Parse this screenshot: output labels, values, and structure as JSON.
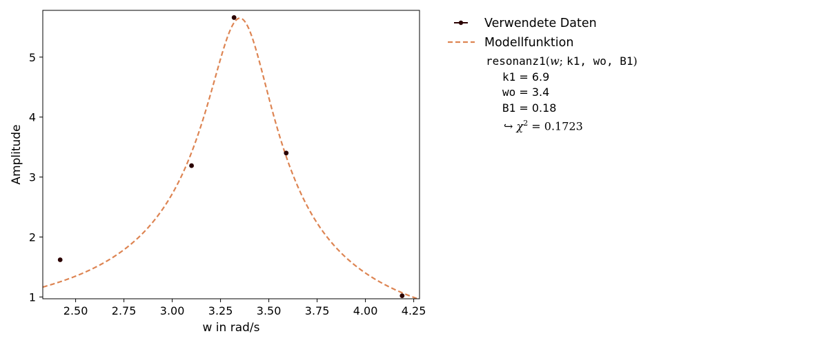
{
  "chart_data": {
    "type": "scatter",
    "xlabel": "w in rad/s",
    "ylabel": "Amplitude",
    "xlim": [
      2.33,
      4.28
    ],
    "ylim": [
      0.97,
      5.78
    ],
    "x_ticks": [
      2.5,
      2.75,
      3.0,
      3.25,
      3.5,
      3.75,
      4.0,
      4.25
    ],
    "x_tick_labels": [
      "2.50",
      "2.75",
      "3.00",
      "3.25",
      "3.50",
      "3.75",
      "4.00",
      "4.25"
    ],
    "y_ticks": [
      1,
      2,
      3,
      4,
      5
    ],
    "y_tick_labels": [
      "1",
      "2",
      "3",
      "4",
      "5"
    ],
    "grid": false,
    "legend_position": "outside-right",
    "series": [
      {
        "name": "Verwendete Daten",
        "kind": "points",
        "color": "#2a0000",
        "x": [
          2.42,
          3.1,
          3.32,
          3.59,
          4.19
        ],
        "y": [
          1.62,
          3.19,
          5.66,
          3.4,
          1.02
        ]
      },
      {
        "name": "Modellfunktion",
        "kind": "line",
        "style": "dashed",
        "color": "#dd8452",
        "model": "resonanz1",
        "params": {
          "k1": 6.9,
          "wo": 3.36,
          "B1": 0.182
        },
        "x_range": [
          2.33,
          4.28
        ]
      }
    ]
  },
  "legend": {
    "data_label": "Verwendete Daten",
    "model_label": "Modellfunktion",
    "function_name": "resonanz1",
    "function_var": "w",
    "function_params": "k1, wo, B1",
    "params": [
      {
        "name": "k1",
        "value": "6.9"
      },
      {
        "name": "wo",
        "value": "3.4"
      },
      {
        "name": "B1",
        "value": "0.18"
      }
    ],
    "chi_symbol": "χ",
    "chi_exp": "2",
    "chi_value": "0.1723"
  }
}
